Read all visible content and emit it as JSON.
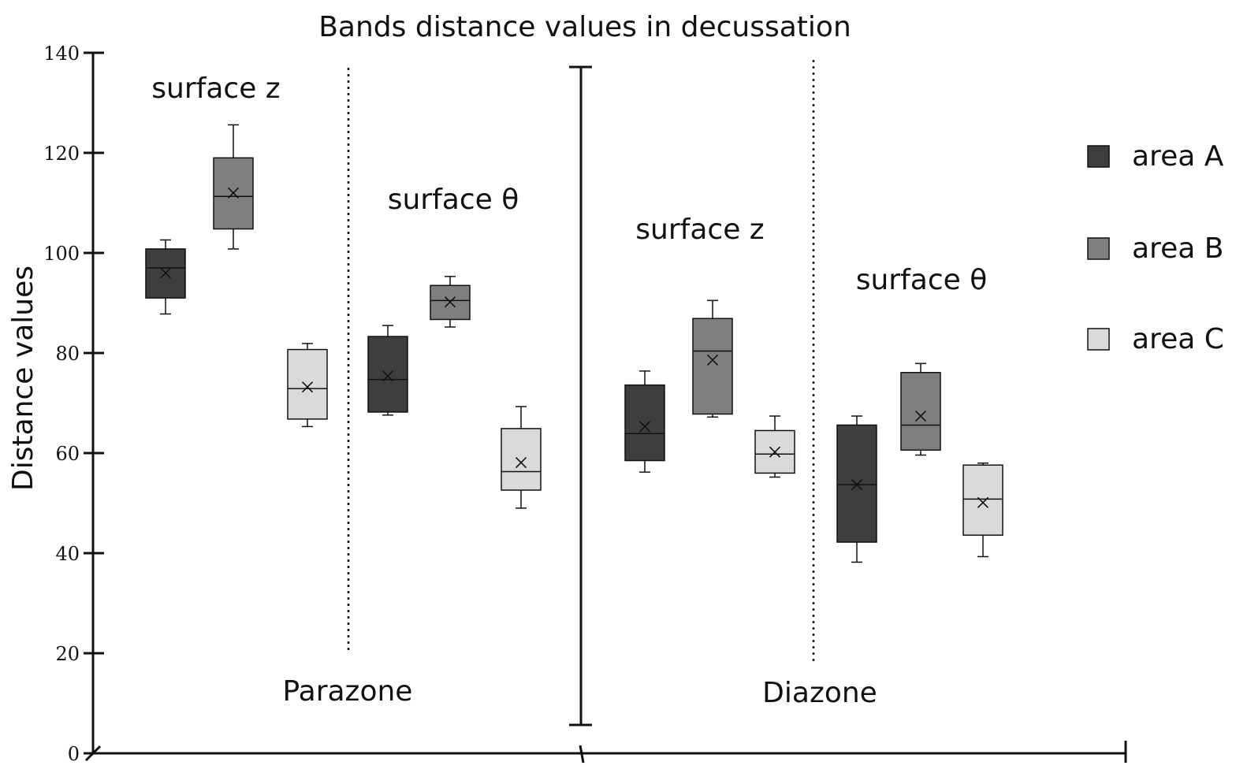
{
  "chart_data": {
    "type": "box",
    "title": "Bands distance values in decussation",
    "ylabel": "Distance values",
    "xlabel": "",
    "ylim": [
      0,
      140
    ],
    "yticks": [
      0,
      20,
      40,
      60,
      80,
      100,
      120,
      140
    ],
    "grid": false,
    "legend_position": "right",
    "legend": [
      {
        "label": "area A",
        "color": "#3d3e40"
      },
      {
        "label": "area B",
        "color": "#7e7f81"
      },
      {
        "label": "area C",
        "color": "#d9dadc"
      }
    ],
    "zones": [
      {
        "label": "Parazone",
        "groups": [
          {
            "label": "surface z",
            "series": [
              {
                "name": "area A",
                "min": 87.8,
                "q1": 91.0,
                "median": 97.0,
                "q3": 100.8,
                "max": 102.6,
                "mean": 96.0
              },
              {
                "name": "area B",
                "min": 100.8,
                "q1": 104.8,
                "median": 111.3,
                "q3": 119.0,
                "max": 125.6,
                "mean": 112.0
              },
              {
                "name": "area C",
                "min": 65.3,
                "q1": 66.8,
                "median": 72.9,
                "q3": 80.7,
                "max": 81.9,
                "mean": 73.2
              }
            ]
          },
          {
            "label": "surface θ",
            "series": [
              {
                "name": "area A",
                "min": 67.6,
                "q1": 68.2,
                "median": 74.7,
                "q3": 83.3,
                "max": 85.5,
                "mean": 75.4
              },
              {
                "name": "area B",
                "min": 85.2,
                "q1": 86.7,
                "median": 90.5,
                "q3": 93.5,
                "max": 95.3,
                "mean": 90.2
              },
              {
                "name": "area C",
                "min": 49.0,
                "q1": 52.6,
                "median": 56.3,
                "q3": 64.9,
                "max": 69.3,
                "mean": 58.1
              }
            ]
          }
        ]
      },
      {
        "label": "Diazone",
        "groups": [
          {
            "label": "surface z",
            "series": [
              {
                "name": "area A",
                "min": 56.2,
                "q1": 58.5,
                "median": 63.9,
                "q3": 73.6,
                "max": 76.4,
                "mean": 65.3
              },
              {
                "name": "area B",
                "min": 67.2,
                "q1": 67.8,
                "median": 80.4,
                "q3": 86.9,
                "max": 90.5,
                "mean": 78.6
              },
              {
                "name": "area C",
                "min": 55.2,
                "q1": 56.0,
                "median": 59.8,
                "q3": 64.5,
                "max": 67.4,
                "mean": 60.2
              }
            ]
          },
          {
            "label": "surface θ",
            "series": [
              {
                "name": "area A",
                "min": 38.2,
                "q1": 42.2,
                "median": 53.7,
                "q3": 65.6,
                "max": 67.4,
                "mean": 53.7
              },
              {
                "name": "area B",
                "min": 59.6,
                "q1": 60.6,
                "median": 65.6,
                "q3": 76.1,
                "max": 77.9,
                "mean": 67.4
              },
              {
                "name": "area C",
                "min": 39.3,
                "q1": 43.6,
                "median": 50.8,
                "q3": 57.6,
                "max": 58.0,
                "mean": 50.1
              }
            ]
          }
        ]
      }
    ]
  }
}
